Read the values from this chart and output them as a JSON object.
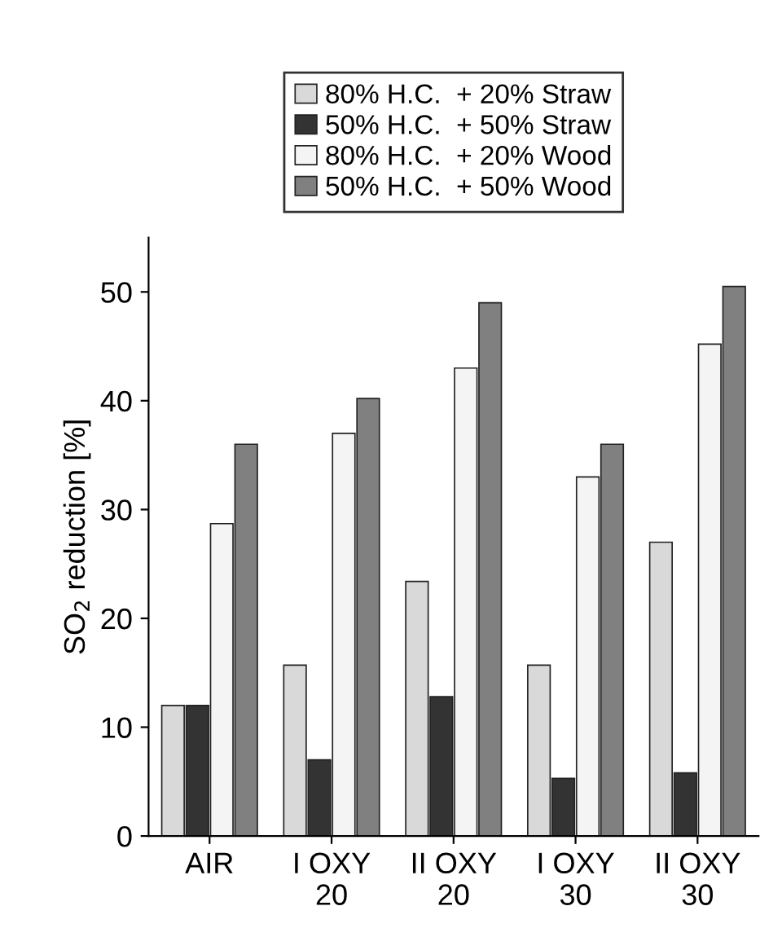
{
  "chart_data": {
    "type": "bar",
    "ylabel": "SO$_{2}$ reduction [%]",
    "categories": [
      "AIR",
      "I OXY\n20",
      "II OXY\n20",
      "I OXY\n30",
      "II OXY\n30"
    ],
    "series": [
      {
        "name": "80% H.C.  + 20% Straw",
        "color": "#d9d9d9",
        "values": [
          12,
          15.7,
          23.4,
          15.7,
          27
        ]
      },
      {
        "name": "50% H.C.  + 50% Straw",
        "color": "#333333",
        "values": [
          12,
          7,
          12.8,
          5.3,
          5.8
        ]
      },
      {
        "name": "80% H.C.  + 20% Wood",
        "color": "#f4f4f4",
        "values": [
          28.7,
          37,
          43,
          33,
          45.2
        ]
      },
      {
        "name": "50% H.C.  + 50% Wood",
        "color": "#808080",
        "values": [
          36,
          40.2,
          49,
          36,
          50.5
        ]
      }
    ],
    "ylim": [
      0,
      55
    ],
    "yticks": [
      0,
      10,
      20,
      30,
      40,
      50
    ],
    "grid": false,
    "legend": "top"
  }
}
